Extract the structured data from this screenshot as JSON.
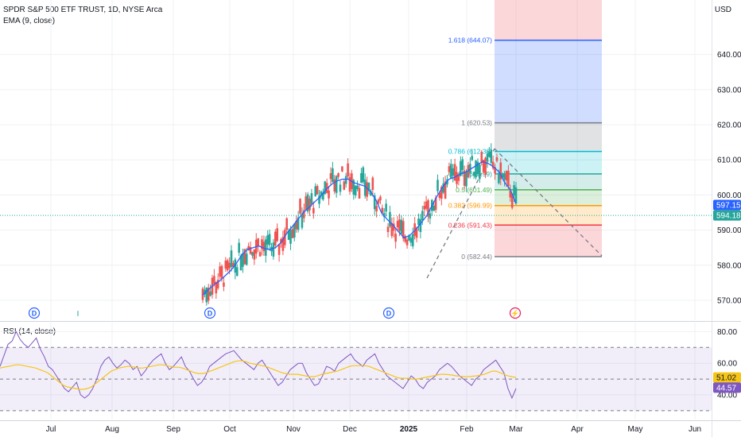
{
  "header": {
    "title": "SPDR S&P 500 ETF TRUST, 1D, NYSE Arca",
    "ema_label": "EMA (9, close)",
    "rsi_label": "RSI (14, close)",
    "currency": "USD"
  },
  "colors": {
    "up": "#26a69a",
    "down": "#ef5350",
    "ema": "#2962ff",
    "rsi": "#7e57c2",
    "rsi_ma": "#f5c518",
    "grid": "#eef0f3",
    "axis_text": "#131722"
  },
  "chart_data": [
    {
      "type": "candlestick",
      "title": "SPDR S&P 500 ETF TRUST, 1D, NYSE Arca",
      "ylim": [
        565,
        650
      ],
      "y_ticks": [
        "570.00",
        "580.00",
        "590.00",
        "600.00",
        "610.00",
        "620.00",
        "630.00",
        "640.00"
      ],
      "x_ticks": [
        "Jul",
        "Aug",
        "Sep",
        "Oct",
        "Nov",
        "Dec",
        "2025",
        "Feb",
        "Mar",
        "Apr",
        "May",
        "Jun"
      ],
      "price_badges": [
        {
          "label": "597.15",
          "value": 597.15,
          "color": "#2962ff"
        },
        {
          "label": "594.18",
          "value": 594.18,
          "color": "#26a69a"
        }
      ],
      "ema_values": [
        571.5,
        573,
        574.5,
        575.5,
        577,
        578.5,
        580.5,
        583,
        584.5,
        585,
        585.5,
        584.8,
        584.5,
        585,
        586.5,
        589,
        591,
        593,
        595,
        596.5,
        598,
        599.5,
        601.5,
        603,
        604,
        604.5,
        604.5,
        603.5,
        603,
        602.5,
        601,
        598.5,
        594.8,
        593,
        591.5,
        589.5,
        587.8,
        588.5,
        590,
        592,
        594,
        597,
        600,
        602.5,
        604.5,
        605,
        606,
        606.5,
        607.5,
        608.5,
        609.5,
        609,
        608,
        606.5,
        603.5,
        601.5,
        597.5
      ],
      "fib_levels": [
        {
          "ratio": "1.618",
          "label": "1.618 (644.07)",
          "value": 644.07,
          "color": "#2962ff"
        },
        {
          "ratio": "1",
          "label": "1 (620.53)",
          "value": 620.53,
          "color": "#787b86"
        },
        {
          "ratio": "0.786",
          "label": "0.786 (612.38)",
          "value": 612.38,
          "color": "#00bcd4"
        },
        {
          "ratio": "0.618",
          "label": "0.618 (605.99)",
          "value": 605.99,
          "color": "#26a69a"
        },
        {
          "ratio": "0.5",
          "label": "0.5 (601.49)",
          "value": 601.49,
          "color": "#4caf50"
        },
        {
          "ratio": "0.382",
          "label": "0.382 (596.99)",
          "value": 596.99,
          "color": "#ff9800"
        },
        {
          "ratio": "0.236",
          "label": "0.236 (591.43)",
          "value": 591.43,
          "color": "#f23645"
        },
        {
          "ratio": "0",
          "label": "0 (582.44)",
          "value": 582.44,
          "color": "#787b86"
        }
      ],
      "event_markers": [
        {
          "label": "D",
          "kind": "dividend"
        },
        {
          "label": "D",
          "kind": "dividend"
        },
        {
          "label": "D",
          "kind": "dividend"
        },
        {
          "label": "⚡",
          "kind": "earnings"
        }
      ]
    },
    {
      "type": "line",
      "title": "RSI (14, close)",
      "ylim": [
        30,
        85
      ],
      "y_ticks": [
        "40.00",
        "60.00",
        "80.00"
      ],
      "bands": [
        70,
        50,
        30
      ],
      "badges": [
        {
          "label": "51.02",
          "value": 51.02,
          "color": "#f5c518"
        },
        {
          "label": "44.57",
          "value": 44.57,
          "color": "#7e57c2"
        }
      ],
      "rsi_values": [
        58,
        65,
        72,
        74,
        80,
        75,
        72,
        70,
        73,
        76,
        69,
        64,
        58,
        56,
        52,
        48,
        44,
        42,
        45,
        48,
        40,
        38,
        40,
        44,
        50,
        58,
        62,
        64,
        60,
        57,
        59,
        62,
        60,
        56,
        58,
        52,
        55,
        59,
        62,
        64,
        66,
        60,
        56,
        58,
        61,
        64,
        58,
        55,
        50,
        46,
        48,
        52,
        58,
        60,
        62,
        64,
        66,
        67,
        68,
        65,
        62,
        60,
        58,
        56,
        60,
        62,
        58,
        54,
        50,
        46,
        48,
        52,
        56,
        58,
        60,
        60,
        54,
        50,
        46,
        47,
        52,
        58,
        57,
        55,
        60,
        62,
        64,
        66,
        62,
        60,
        58,
        62,
        64,
        66,
        60,
        56,
        52,
        50,
        48,
        46,
        44,
        48,
        52,
        50,
        46,
        44,
        48,
        50,
        52,
        56,
        58,
        60,
        58,
        55,
        52,
        50,
        48,
        46,
        50,
        52,
        56,
        58,
        60,
        62,
        58,
        54,
        44,
        38,
        44
      ],
      "ma_values": [
        57,
        57.5,
        58,
        58.5,
        59,
        59,
        58.5,
        58,
        57.5,
        57,
        56,
        55,
        54,
        52,
        50,
        48,
        46,
        45,
        44.5,
        44,
        43.5,
        43.5,
        44,
        45,
        47,
        49,
        51,
        53,
        55,
        56,
        57,
        57.5,
        58,
        58,
        57.5,
        57,
        57,
        57.5,
        58,
        58.5,
        59,
        59,
        58.5,
        58,
        57.5,
        57.5,
        57,
        56,
        55,
        54,
        53.5,
        53.5,
        54,
        55,
        56,
        57,
        58,
        59,
        60,
        61,
        61.5,
        61.5,
        61,
        60,
        59.5,
        59,
        58.5,
        58,
        57,
        56,
        55,
        54,
        53.5,
        53,
        53,
        53,
        52.5,
        52,
        51.5,
        51.5,
        52,
        53,
        53.5,
        54,
        54.5,
        55,
        56,
        57,
        58,
        58.5,
        58.5,
        58.5,
        58.5,
        58,
        57,
        56,
        55,
        54,
        53,
        52,
        51,
        50.5,
        50.5,
        50.5,
        50,
        50,
        50.5,
        51,
        51.5,
        52,
        52.5,
        53,
        53,
        52.8,
        52.5,
        52,
        51.8,
        51.5,
        51.5,
        51.8,
        52,
        52.5,
        53,
        54,
        55,
        55,
        54,
        53,
        52,
        51.5,
        51.02
      ]
    }
  ]
}
